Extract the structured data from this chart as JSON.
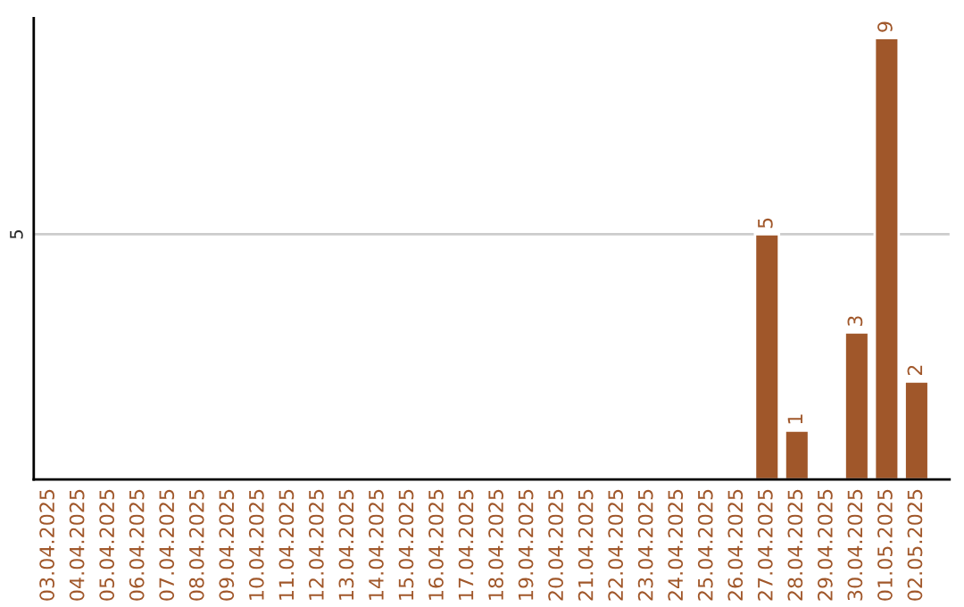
{
  "chart_data": {
    "type": "bar",
    "categories": [
      "03.04.2025",
      "04.04.2025",
      "05.04.2025",
      "06.04.2025",
      "07.04.2025",
      "08.04.2025",
      "09.04.2025",
      "10.04.2025",
      "11.04.2025",
      "12.04.2025",
      "13.04.2025",
      "14.04.2025",
      "15.04.2025",
      "16.04.2025",
      "17.04.2025",
      "18.04.2025",
      "19.04.2025",
      "20.04.2025",
      "21.04.2025",
      "22.04.2025",
      "23.04.2025",
      "24.04.2025",
      "25.04.2025",
      "26.04.2025",
      "27.04.2025",
      "28.04.2025",
      "29.04.2025",
      "30.04.2025",
      "01.05.2025",
      "02.05.2025"
    ],
    "values": [
      null,
      null,
      null,
      null,
      null,
      null,
      null,
      null,
      null,
      null,
      null,
      null,
      null,
      null,
      null,
      null,
      null,
      null,
      null,
      null,
      null,
      null,
      null,
      null,
      5,
      1,
      null,
      3,
      9,
      2
    ],
    "data_labels": true,
    "color": "#a0572a",
    "ref_lines": [
      {
        "axis": "y",
        "value": 5,
        "label": "5",
        "color": "#cccccc"
      }
    ]
  }
}
